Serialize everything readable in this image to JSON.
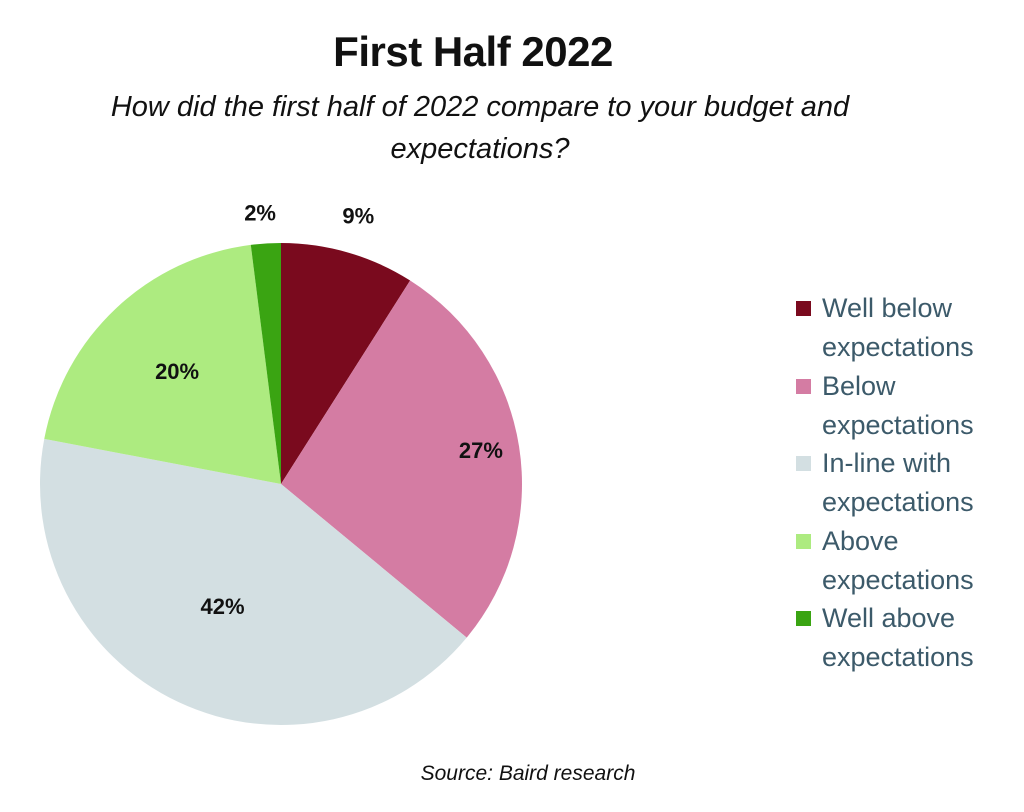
{
  "chart_data": {
    "type": "pie",
    "title": "First Half 2022",
    "subtitle": "How did the first half of 2022 compare to your budget and expectations?",
    "categories": [
      "Well below expectations",
      "Below expectations",
      "In-line with expectations",
      "Above expectations",
      "Well above expectations"
    ],
    "values": [
      9,
      27,
      42,
      20,
      2
    ],
    "labels": [
      "9%",
      "27%",
      "42%",
      "20%",
      "2%"
    ],
    "colors": [
      "#7a0a1e",
      "#d47ca3",
      "#d3dfe2",
      "#adeb80",
      "#3aa412"
    ],
    "legend_position": "right",
    "source": "Source: Baird research"
  }
}
